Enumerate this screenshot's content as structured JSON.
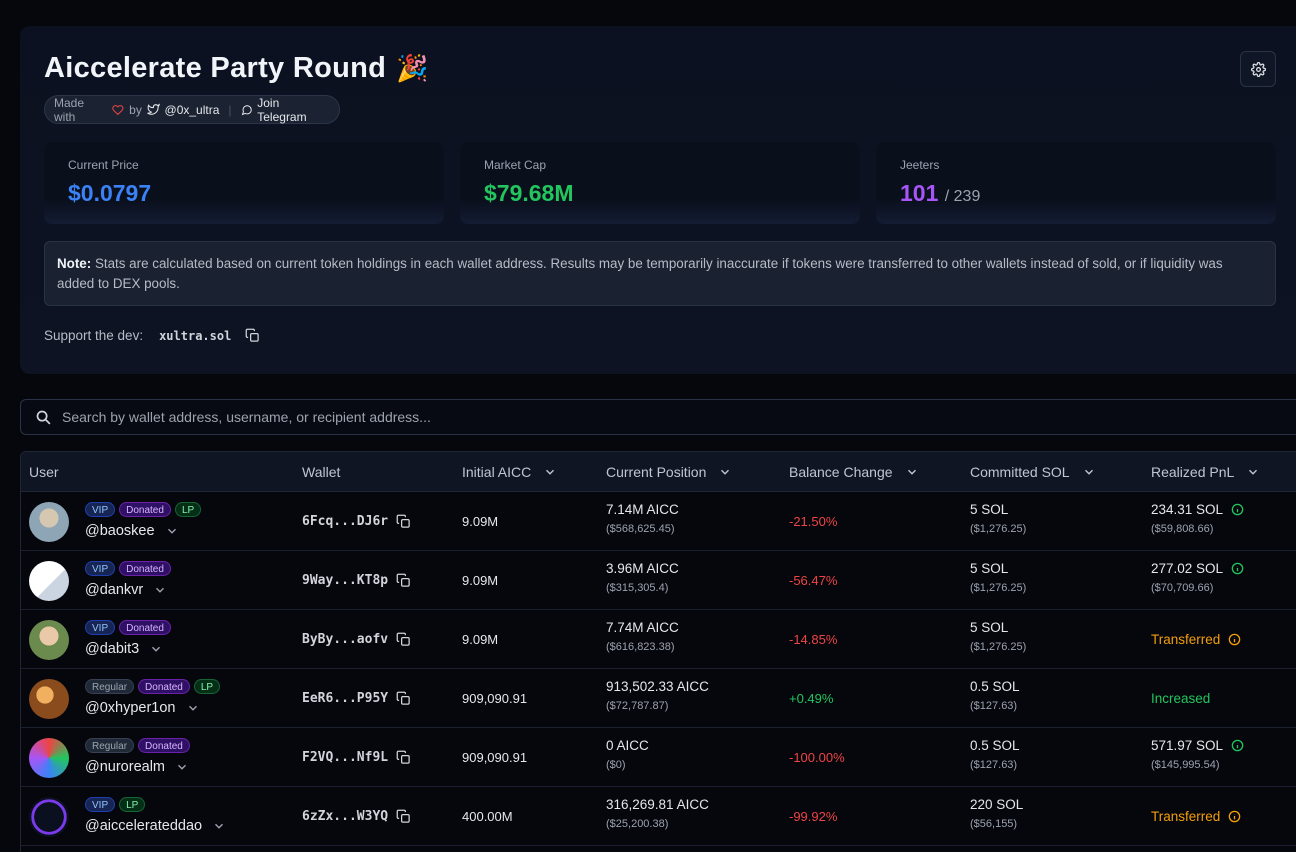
{
  "header": {
    "title": "Aiccelerate Party Round",
    "party_icon": "🎉",
    "made_with": "Made with",
    "by": "by",
    "twitter_handle": "@0x_ultra",
    "telegram_label": "Join Telegram"
  },
  "stats": {
    "price": {
      "label": "Current Price",
      "value": "$0.0797",
      "color": "#3b82f6"
    },
    "market_cap": {
      "label": "Market Cap",
      "value": "$79.68M",
      "color": "#22c55e"
    },
    "jeeters": {
      "label": "Jeeters",
      "value": "101",
      "total": "/ 239",
      "color": "#a855f7"
    }
  },
  "note": {
    "label": "Note:",
    "text": " Stats are calculated based on current token holdings in each wallet address. Results may be temporarily inaccurate if tokens were transferred to other wallets instead of sold, or if liquidity was added to DEX pools."
  },
  "support": {
    "label": "Support the dev:",
    "address": "xultra.sol"
  },
  "search": {
    "placeholder": "Search by wallet address, username, or recipient address..."
  },
  "table": {
    "columns": [
      "User",
      "Wallet",
      "Initial AICC",
      "Current Position",
      "Balance Change",
      "Committed SOL",
      "Realized PnL"
    ],
    "rows": [
      {
        "badges": [
          "VIP",
          "Donated",
          "LP"
        ],
        "username": "@baoskee",
        "wallet": "6Fcq...DJ6r",
        "initial": "9.09M",
        "position": "7.14M AICC",
        "position_usd": "($568,625.45)",
        "balance": "-21.50%",
        "balance_sign": "neg",
        "committed": "5 SOL",
        "committed_usd": "($1,276.25)",
        "pnl": "234.31 SOL",
        "pnl_usd": "($59,808.66)",
        "pnl_type": "green"
      },
      {
        "badges": [
          "VIP",
          "Donated"
        ],
        "username": "@dankvr",
        "wallet": "9Way...KT8p",
        "initial": "9.09M",
        "position": "3.96M AICC",
        "position_usd": "($315,305.4)",
        "balance": "-56.47%",
        "balance_sign": "neg",
        "committed": "5 SOL",
        "committed_usd": "($1,276.25)",
        "pnl": "277.02 SOL",
        "pnl_usd": "($70,709.66)",
        "pnl_type": "green"
      },
      {
        "badges": [
          "VIP",
          "Donated"
        ],
        "username": "@dabit3",
        "wallet": "ByBy...aofv",
        "initial": "9.09M",
        "position": "7.74M AICC",
        "position_usd": "($616,823.38)",
        "balance": "-14.85%",
        "balance_sign": "neg",
        "committed": "5 SOL",
        "committed_usd": "($1,276.25)",
        "pnl": "Transferred",
        "pnl_usd": "",
        "pnl_type": "orange"
      },
      {
        "badges": [
          "Regular",
          "Donated",
          "LP"
        ],
        "username": "@0xhyper1on",
        "wallet": "EeR6...P95Y",
        "initial": "909,090.91",
        "position": "913,502.33 AICC",
        "position_usd": "($72,787.87)",
        "balance": "+0.49%",
        "balance_sign": "pos",
        "committed": "0.5 SOL",
        "committed_usd": "($127.63)",
        "pnl": "Increased",
        "pnl_usd": "",
        "pnl_type": "increased"
      },
      {
        "badges": [
          "Regular",
          "Donated"
        ],
        "username": "@nurorealm",
        "wallet": "F2VQ...Nf9L",
        "initial": "909,090.91",
        "position": "0 AICC",
        "position_usd": "($0)",
        "balance": "-100.00%",
        "balance_sign": "neg",
        "committed": "0.5 SOL",
        "committed_usd": "($127.63)",
        "pnl": "571.97 SOL",
        "pnl_usd": "($145,995.54)",
        "pnl_type": "green"
      },
      {
        "badges": [
          "VIP",
          "LP"
        ],
        "username": "@aiccelerateddao",
        "wallet": "6zZx...W3YQ",
        "initial": "400.00M",
        "position": "316,269.81 AICC",
        "position_usd": "($25,200.38)",
        "balance": "-99.92%",
        "balance_sign": "neg",
        "committed": "220 SOL",
        "committed_usd": "($56,155)",
        "pnl": "Transferred",
        "pnl_usd": "",
        "pnl_type": "orange"
      }
    ]
  }
}
